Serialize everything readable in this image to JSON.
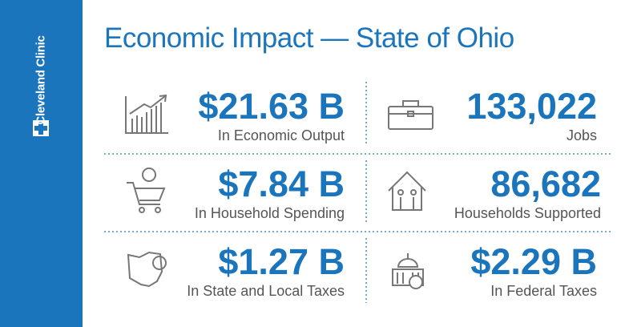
{
  "header": {
    "brand": "Cleveland Clinic",
    "title": "Economic Impact — State of Ohio"
  },
  "items": [
    {
      "value": "$21.63 B",
      "label": "In Economic Output"
    },
    {
      "value": "133,022",
      "label": "Jobs"
    },
    {
      "value": "$7.84 B",
      "label": "In Household Spending"
    },
    {
      "value": "86,682",
      "label": "Households Supported"
    },
    {
      "value": "$1.27 B",
      "label": "In State and Local Taxes"
    },
    {
      "value": "$2.29 B",
      "label": "In Federal Taxes"
    }
  ]
}
